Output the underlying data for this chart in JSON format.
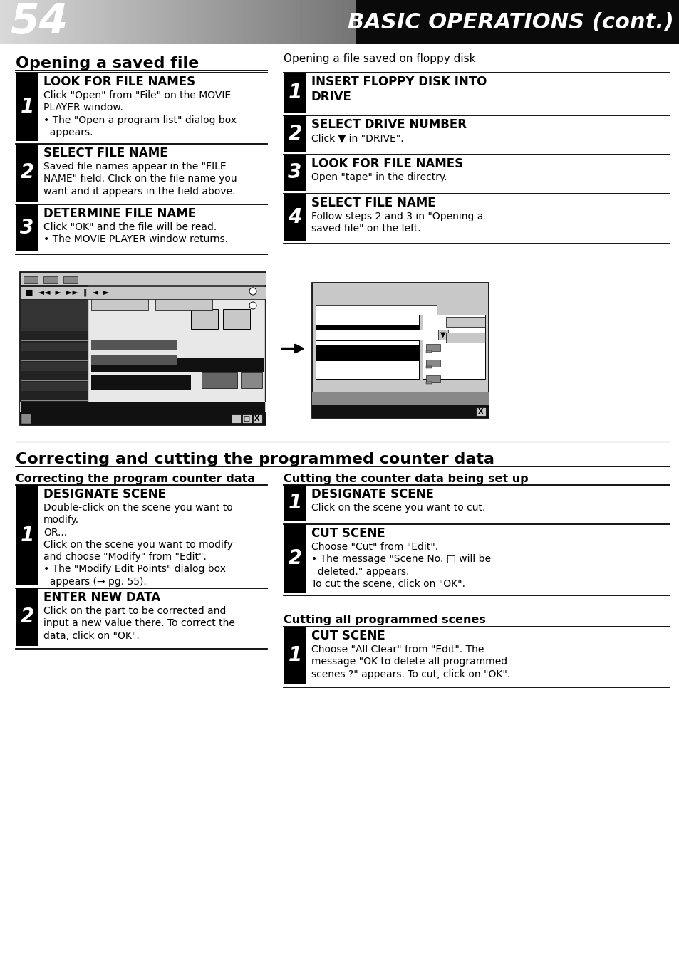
{
  "page_num": "54",
  "header_title": "BASIC OPERATIONS (cont.)",
  "bg_color": "#ffffff",
  "section1_title": "Opening a saved file",
  "section2_title": "Opening a file saved on floppy disk",
  "left_steps": [
    {
      "num": "1",
      "heading": "LOOK FOR FILE NAMES",
      "body_parts": [
        {
          "text": "Click \"Open\" from \"File\" on the MOVIE\nPLAYER window.",
          "bold_words": [
            "Open",
            "File"
          ]
        },
        {
          "text": "• The \"Open a program list\" dialog box\n  appears.",
          "bold_words": [
            "Open a program list"
          ]
        }
      ]
    },
    {
      "num": "2",
      "heading": "SELECT FILE NAME",
      "body_parts": [
        {
          "text": "Saved file names appear in the \"FILE\nNAME\" field. Click on the file name you\nwant and it appears in the field above.",
          "bold_words": []
        }
      ]
    },
    {
      "num": "3",
      "heading": "DETERMINE FILE NAME",
      "body_parts": [
        {
          "text": "Click \"OK\" and the file will be read.",
          "bold_words": []
        },
        {
          "text": "• The MOVIE PLAYER window returns.",
          "bold_words": []
        }
      ]
    }
  ],
  "right_steps": [
    {
      "num": "1",
      "heading": "INSERT FLOPPY DISK INTO\nDRIVE",
      "body": ""
    },
    {
      "num": "2",
      "heading": "SELECT DRIVE NUMBER",
      "body": "Click ▼ in \"DRIVE\"."
    },
    {
      "num": "3",
      "heading": "LOOK FOR FILE NAMES",
      "body": "Open \"tape\" in the directry."
    },
    {
      "num": "4",
      "heading": "SELECT FILE NAME",
      "body": "Follow steps 2 and 3 in \"Opening a\nsaved file\" on the left."
    }
  ],
  "section3_title": "Correcting and cutting the programmed counter data",
  "section3a_title": "Correcting the program counter data",
  "section3b_title": "Cutting the counter data being set up",
  "left2_steps": [
    {
      "num": "1",
      "heading": "DESIGNATE SCENE",
      "body": "Double-click on the scene you want to\nmodify.\nOR...\nClick on the scene you want to modify\nand choose \"Modify\" from \"Edit\".\n• The \"Modify Edit Points\" dialog box\n  appears (→ pg. 55)."
    },
    {
      "num": "2",
      "heading": "ENTER NEW DATA",
      "body": "Click on the part to be corrected and\ninput a new value there. To correct the\ndata, click on \"OK\"."
    }
  ],
  "right2_steps": [
    {
      "num": "1",
      "heading": "DESIGNATE SCENE",
      "body": "Click on the scene you want to cut."
    },
    {
      "num": "2",
      "heading": "CUT SCENE",
      "body": "Choose \"Cut\" from \"Edit\".\n• The message \"Scene No. □ will be\n  deleted.\" appears.\nTo cut the scene, click on \"OK\"."
    }
  ],
  "section3c_title": "Cutting all programmed scenes",
  "right3_steps": [
    {
      "num": "1",
      "heading": "CUT SCENE",
      "body": "Choose \"All Clear\" from \"Edit\". The\nmessage \"OK to delete all programmed\nscenes ?\" appears. To cut, click on \"OK\"."
    }
  ]
}
